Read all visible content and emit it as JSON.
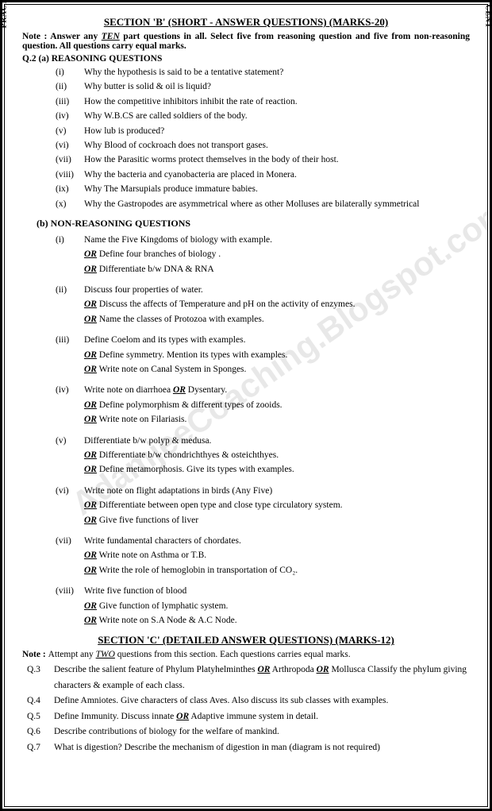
{
  "border_text": "PRACTICAL CENTRE COMPREHENSIVE PAPER 2018 ☉ PRACTICAL CENTRE COMPREHENSIVE PAPER 2018 ☉ PRACTICAL CENTRE COMPREHENSIVE PAPER 2018 ☉ PRACTICAL CENT",
  "watermark": "AdamjeeCoaching.Blogspot.com",
  "section_b": {
    "heading": "SECTION 'B' (SHORT - ANSWER QUESTIONS) (MARKS-20)",
    "note_pre": "Note : Answer any ",
    "note_ten": "TEN",
    "note_post": " part questions in all. Select five from reasoning question and five from non-reasoning question. All questions carry equal marks.",
    "qa_label": "Q.2 (a) REASONING QUESTIONS",
    "reasoning": [
      {
        "n": "(i)",
        "t": "Why the hypothesis is said to be a tentative statement?"
      },
      {
        "n": "(ii)",
        "t": "Why butter is solid & oil is liquid?"
      },
      {
        "n": "(iii)",
        "t": "How the competitive inhibitors inhibit the rate of reaction."
      },
      {
        "n": "(iv)",
        "t": "Why W.B.CS are called soldiers of the body."
      },
      {
        "n": "(v)",
        "t": "How lub is produced?"
      },
      {
        "n": "(vi)",
        "t": "Why Blood of cockroach does not transport gases."
      },
      {
        "n": "(vii)",
        "t": "How the Parasitic worms protect themselves in the body of their host."
      },
      {
        "n": "(viii)",
        "t": "Why the bacteria and cyanobacteria are placed in Monera."
      },
      {
        "n": "(ix)",
        "t": "Why The Marsupials produce immature babies."
      },
      {
        "n": "(x)",
        "t": "Why the Gastropodes are asymmetrical where as other Molluses are bilaterally symmetrical"
      }
    ],
    "qb_label": "(b)    NON-REASONING QUESTIONS",
    "nonreasoning": [
      {
        "n": "(i)",
        "main": "Name the Five Kingdoms of biology with example.",
        "ors": [
          "Define four branches of biology .",
          "Differentiate b/w DNA & RNA"
        ]
      },
      {
        "n": "(ii)",
        "main": "Discuss four properties of water.",
        "ors": [
          "Discuss the affects of Temperature and pH on the activity of enzymes.",
          "Name the classes of Protozoa with examples."
        ]
      },
      {
        "n": "(iii)",
        "main": "Define Coelom and its types with examples.",
        "ors": [
          "Define symmetry. Mention its types with examples.",
          "Write note on Canal System in Sponges."
        ]
      },
      {
        "n": "(iv)",
        "main_html": "Write note on diarrhoea <span class='ori'>OR</span> Dysentary.",
        "ors": [
          "Define polymorphism & different types of zooids.",
          "Write note on Filariasis."
        ]
      },
      {
        "n": "(v)",
        "main": "Differentiate b/w polyp & medusa.",
        "ors": [
          "Differentiate b/w chondrichthyes & osteichthyes.",
          "Define metamorphosis. Give its types with examples."
        ]
      },
      {
        "n": "(vi)",
        "main": "Write note on flight adaptations in birds (Any Five)",
        "ors": [
          "Differentiate between open type and close type circulatory system.",
          "Give five functions of liver"
        ]
      },
      {
        "n": "(vii)",
        "main": "Write fundamental characters of chordates.",
        "ors": [
          "Write note on Asthma or T.B.",
          "Write the role of hemoglobin in transportation of CO₂."
        ]
      },
      {
        "n": "(viii)",
        "main": "Write five function of blood",
        "ors": [
          "Give function of lymphatic system.",
          "Write note on S.A Node & A.C Node."
        ]
      }
    ]
  },
  "section_c": {
    "heading": "SECTION 'C' (DETAILED ANSWER QUESTIONS) (MARKS-12)",
    "note_pre": "Note :  Attempt any ",
    "note_two": "TWO",
    "note_post": " questions from this section. Each questions carries equal marks.",
    "questions": [
      {
        "qn": "Q.3",
        "t_html": "Describe the salient feature of Phylum Platyhelminthes <span class='ori'>OR</span> Arthropoda <span class='ori'>OR</span> Mollusca Classify the phylum giving characters & example of each class."
      },
      {
        "qn": "Q.4",
        "t": "Define Amniotes. Give characters of class Aves. Also discuss its sub classes with examples."
      },
      {
        "qn": "Q.5",
        "t_html": "Define Immunity. Discuss innate <span class='ori'>OR</span> Adaptive immune system in detail."
      },
      {
        "qn": "Q.6",
        "t": "Describe contributions of biology for the welfare of mankind."
      },
      {
        "qn": "Q.7",
        "t": "What is digestion? Describe the mechanism of digestion in man (diagram is not required)"
      }
    ]
  }
}
